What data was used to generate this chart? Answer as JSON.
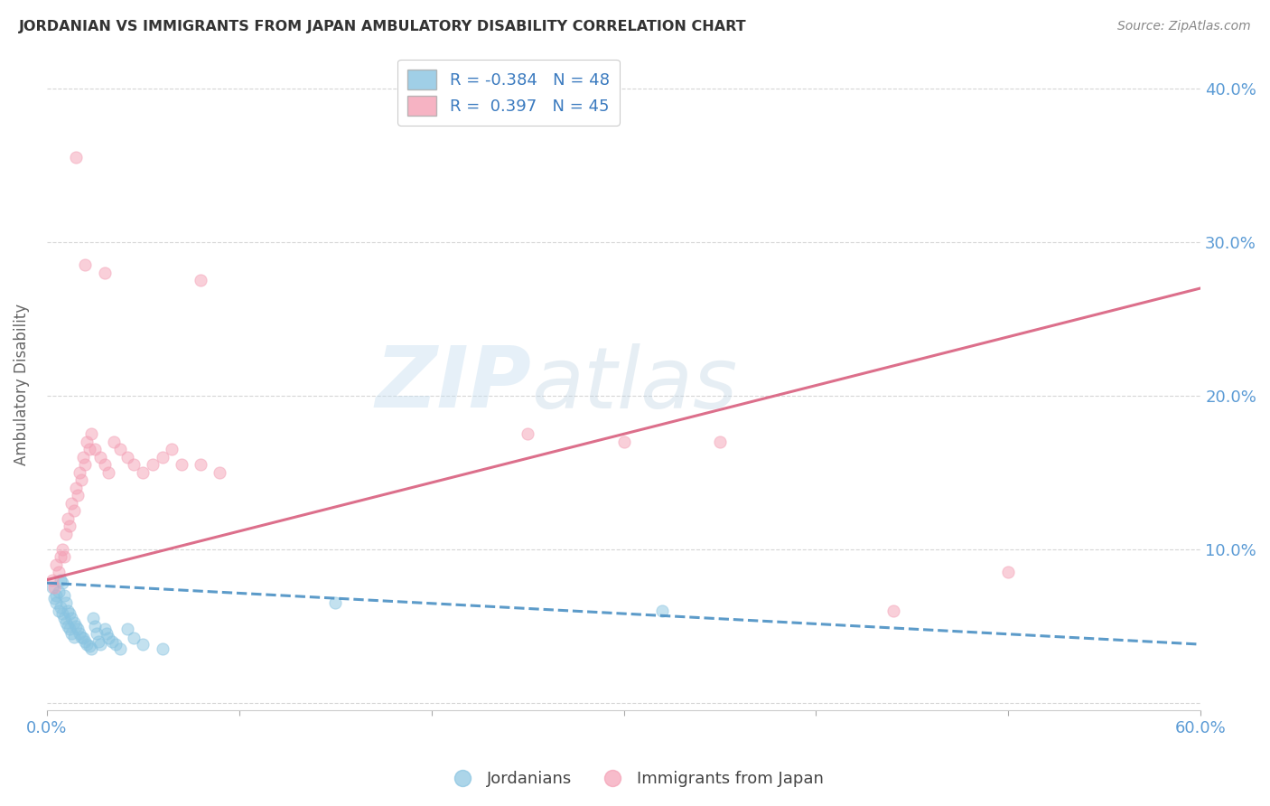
{
  "title": "JORDANIAN VS IMMIGRANTS FROM JAPAN AMBULATORY DISABILITY CORRELATION CHART",
  "source": "Source: ZipAtlas.com",
  "ylabel": "Ambulatory Disability",
  "xlim": [
    0.0,
    0.6
  ],
  "ylim": [
    -0.005,
    0.42
  ],
  "background_color": "#ffffff",
  "grid_color": "#cccccc",
  "watermark_zip": "ZIP",
  "watermark_atlas": "atlas",
  "blue_color": "#89c4e1",
  "pink_color": "#f4a0b5",
  "blue_line_color": "#4a90c4",
  "pink_line_color": "#d95f7f",
  "title_color": "#333333",
  "axis_label_color": "#5b9bd5",
  "jordanians_x": [
    0.003,
    0.004,
    0.005,
    0.005,
    0.006,
    0.006,
    0.007,
    0.007,
    0.008,
    0.008,
    0.009,
    0.009,
    0.01,
    0.01,
    0.011,
    0.011,
    0.012,
    0.012,
    0.013,
    0.013,
    0.014,
    0.014,
    0.015,
    0.016,
    0.017,
    0.018,
    0.019,
    0.02,
    0.021,
    0.022,
    0.023,
    0.024,
    0.025,
    0.026,
    0.027,
    0.028,
    0.03,
    0.031,
    0.032,
    0.034,
    0.036,
    0.038,
    0.042,
    0.045,
    0.05,
    0.06,
    0.15,
    0.32
  ],
  "jordanians_y": [
    0.075,
    0.068,
    0.07,
    0.065,
    0.072,
    0.06,
    0.08,
    0.062,
    0.078,
    0.058,
    0.07,
    0.055,
    0.065,
    0.052,
    0.06,
    0.05,
    0.058,
    0.048,
    0.055,
    0.045,
    0.052,
    0.043,
    0.05,
    0.048,
    0.045,
    0.043,
    0.042,
    0.04,
    0.038,
    0.037,
    0.035,
    0.055,
    0.05,
    0.045,
    0.04,
    0.038,
    0.048,
    0.045,
    0.042,
    0.04,
    0.038,
    0.035,
    0.048,
    0.042,
    0.038,
    0.035,
    0.065,
    0.06
  ],
  "japan_x": [
    0.003,
    0.004,
    0.005,
    0.006,
    0.007,
    0.008,
    0.009,
    0.01,
    0.011,
    0.012,
    0.013,
    0.014,
    0.015,
    0.016,
    0.017,
    0.018,
    0.019,
    0.02,
    0.021,
    0.022,
    0.023,
    0.025,
    0.028,
    0.03,
    0.032,
    0.035,
    0.038,
    0.042,
    0.045,
    0.05,
    0.055,
    0.06,
    0.065,
    0.07,
    0.08,
    0.09,
    0.25,
    0.3,
    0.35,
    0.44,
    0.5,
    0.08,
    0.03,
    0.015,
    0.02
  ],
  "japan_y": [
    0.08,
    0.075,
    0.09,
    0.085,
    0.095,
    0.1,
    0.095,
    0.11,
    0.12,
    0.115,
    0.13,
    0.125,
    0.14,
    0.135,
    0.15,
    0.145,
    0.16,
    0.155,
    0.17,
    0.165,
    0.175,
    0.165,
    0.16,
    0.155,
    0.15,
    0.17,
    0.165,
    0.16,
    0.155,
    0.15,
    0.155,
    0.16,
    0.165,
    0.155,
    0.155,
    0.15,
    0.175,
    0.17,
    0.17,
    0.06,
    0.085,
    0.275,
    0.28,
    0.355,
    0.285
  ],
  "blue_trendline_x": [
    0.0,
    0.6
  ],
  "blue_trendline_y_start": 0.078,
  "blue_trendline_y_end": 0.038,
  "pink_trendline_x": [
    0.0,
    0.6
  ],
  "pink_trendline_y_start": 0.08,
  "pink_trendline_y_end": 0.27
}
